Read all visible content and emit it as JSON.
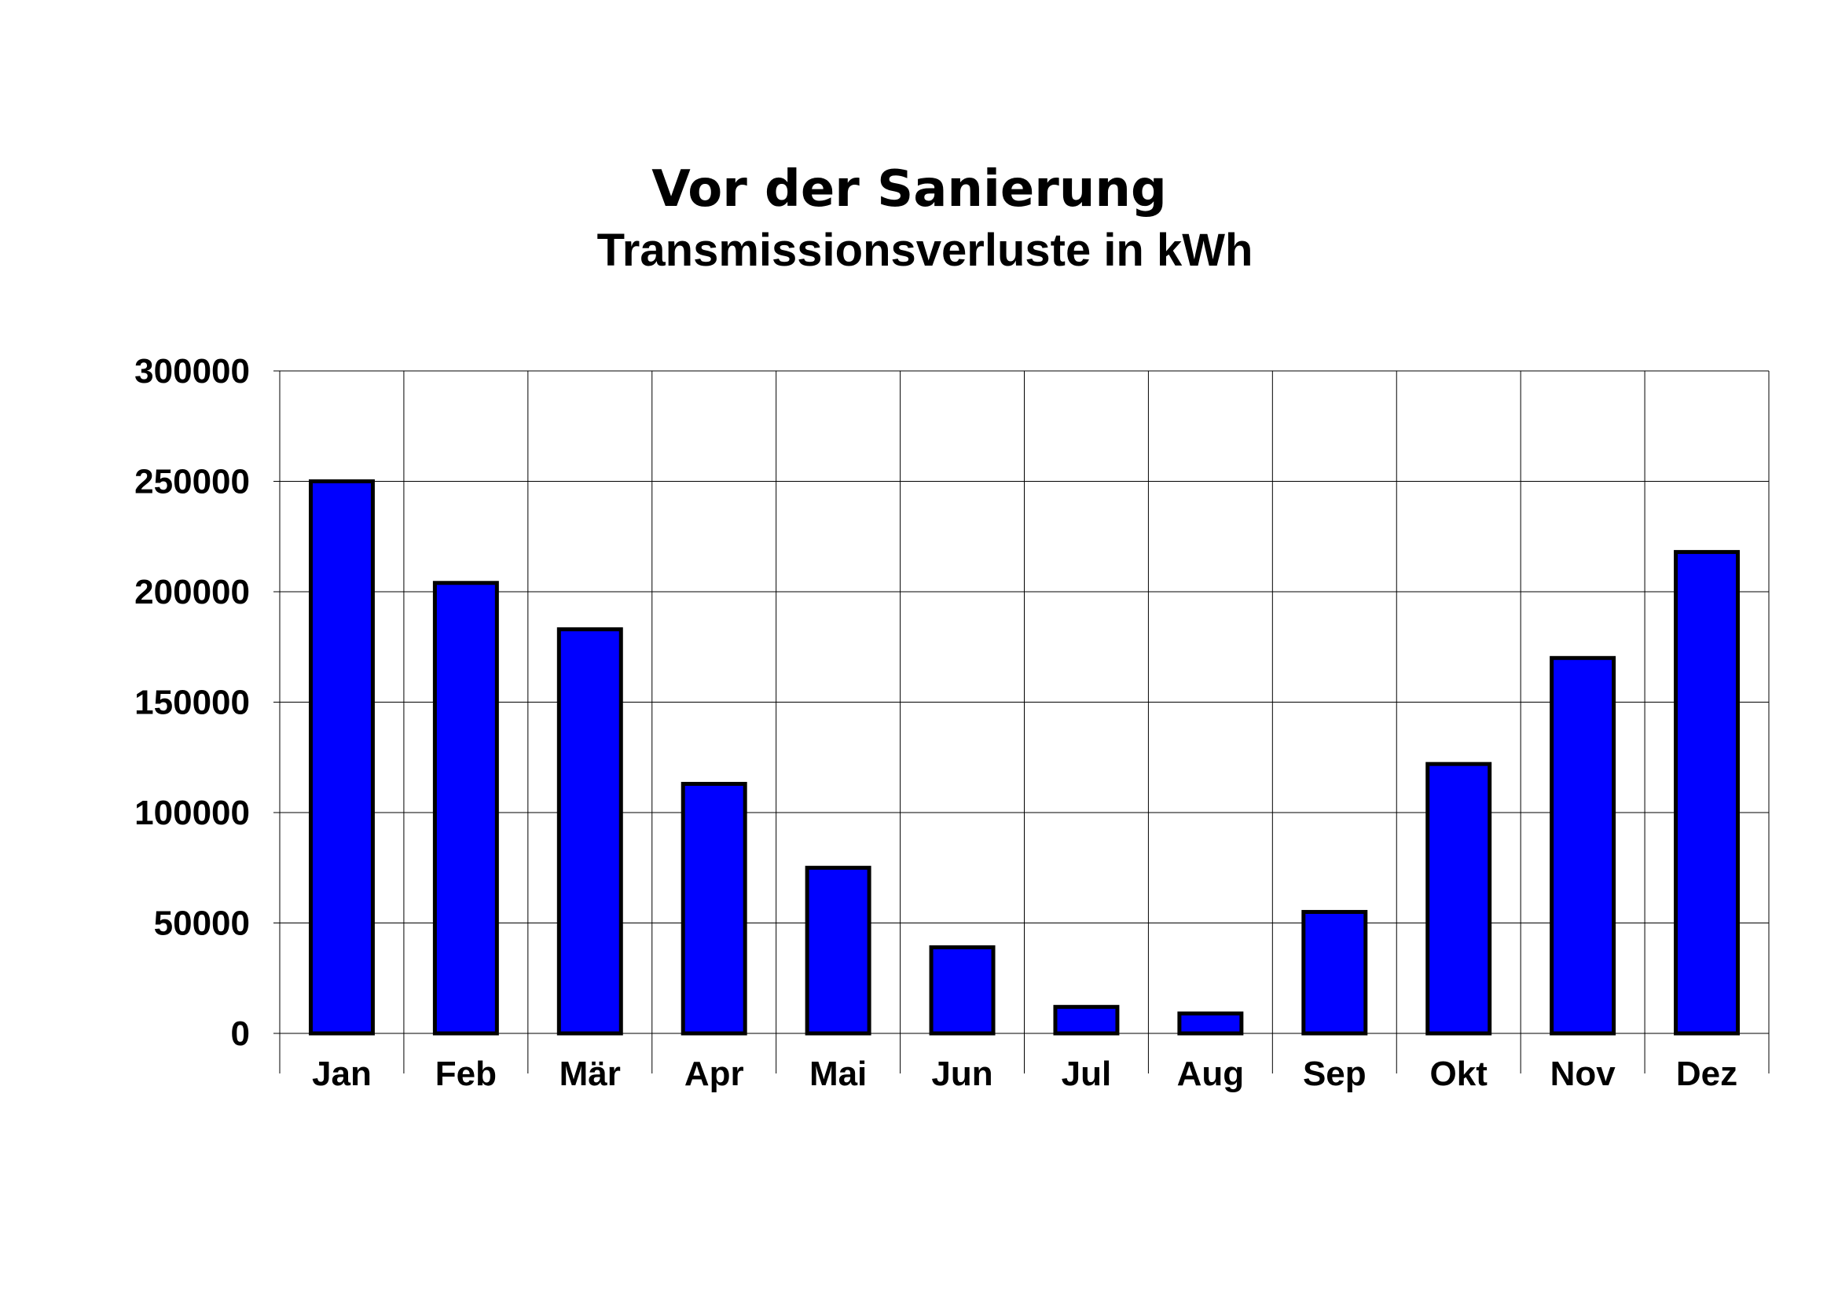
{
  "chart_data": {
    "type": "bar",
    "title": "Vor der Sanierung",
    "subtitle": "Transmissionsverluste in kWh",
    "xlabel": "",
    "ylabel": "",
    "categories": [
      "Jan",
      "Feb",
      "Mär",
      "Apr",
      "Mai",
      "Jun",
      "Jul",
      "Aug",
      "Sep",
      "Okt",
      "Nov",
      "Dez"
    ],
    "values": [
      250000,
      204000,
      183000,
      113000,
      75000,
      39000,
      12000,
      9000,
      55000,
      122000,
      170000,
      218000
    ],
    "ylim": [
      0,
      300000
    ],
    "yticks": [
      0,
      50000,
      100000,
      150000,
      200000,
      250000,
      300000
    ],
    "grid": true,
    "legend": "none",
    "bar_color": "#0000FF"
  }
}
